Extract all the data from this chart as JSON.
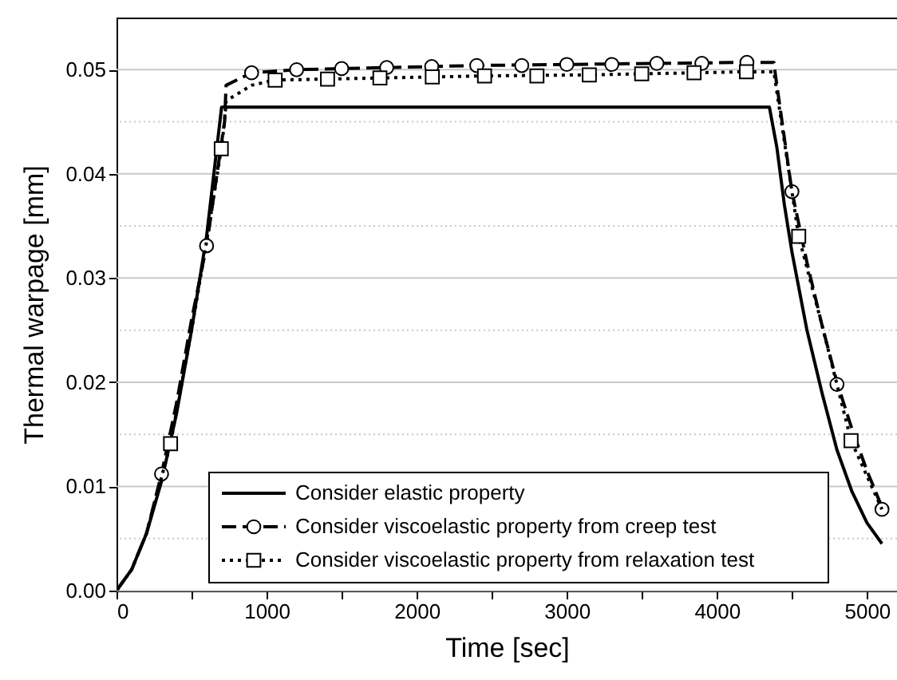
{
  "chart_data": {
    "type": "line",
    "xlabel": "Time  [sec]",
    "ylabel": "Thermal warpage  [mm]",
    "xlim": [
      0,
      5200
    ],
    "ylim": [
      0,
      0.055
    ],
    "xticks": [
      0,
      {
        "value": 500,
        "label": null
      },
      1000,
      {
        "value": 1500,
        "label": null
      },
      2000,
      {
        "value": 2500,
        "label": null
      },
      3000,
      {
        "value": 3500,
        "label": null
      },
      4000,
      {
        "value": 4500,
        "label": null
      },
      5000
    ],
    "yticks": [
      {
        "value": 0,
        "label": "0.00"
      },
      {
        "value": 0.005,
        "label": null
      },
      {
        "value": 0.01,
        "label": "0.01"
      },
      {
        "value": 0.015,
        "label": null
      },
      {
        "value": 0.02,
        "label": "0.02"
      },
      {
        "value": 0.025,
        "label": null
      },
      {
        "value": 0.03,
        "label": "0.03"
      },
      {
        "value": 0.035,
        "label": null
      },
      {
        "value": 0.04,
        "label": "0.04"
      },
      {
        "value": 0.045,
        "label": null
      },
      {
        "value": 0.05,
        "label": "0.05"
      }
    ],
    "grid": "y",
    "legend": "bottom",
    "series": [
      {
        "name": "Consider elastic property",
        "color": "#000000",
        "line_style": "solid",
        "x": [
          0,
          100,
          200,
          300,
          400,
          500,
          600,
          700,
          4350,
          4400,
          4450,
          4500,
          4600,
          4700,
          4800,
          4900,
          5000,
          5100
        ],
        "values": [
          0,
          0.002,
          0.0055,
          0.0105,
          0.017,
          0.025,
          0.034,
          0.0464,
          0.0464,
          0.0425,
          0.037,
          0.0325,
          0.025,
          0.019,
          0.0135,
          0.0095,
          0.0065,
          0.0045
        ]
      },
      {
        "name": "Consider viscoelastic property from creep test",
        "color": "#000000",
        "line_style": "dashed",
        "x": [
          0,
          100,
          200,
          300,
          400,
          500,
          600,
          720,
          730,
          900,
          1200,
          1800,
          2400,
          3000,
          3600,
          4200,
          4380,
          4390,
          4500,
          4600,
          4700,
          4800,
          4900,
          5000,
          5100
        ],
        "values": [
          0,
          0.002,
          0.0055,
          0.0112,
          0.018,
          0.026,
          0.0331,
          0.045,
          0.0485,
          0.0497,
          0.05,
          0.0502,
          0.0504,
          0.0505,
          0.0506,
          0.0507,
          0.0507,
          0.0495,
          0.0383,
          0.0315,
          0.0255,
          0.02,
          0.0155,
          0.0115,
          0.008
        ]
      },
      {
        "type": "scatter",
        "color": "#000000",
        "marker": "circle",
        "x": [
          300,
          600,
          900,
          1200,
          1500,
          1800,
          2100,
          2400,
          2700,
          3000,
          3300,
          3600,
          3900,
          4200,
          4500,
          4800,
          5100
        ],
        "values": [
          0.0112,
          0.0331,
          0.0497,
          0.05,
          0.0501,
          0.0502,
          0.0503,
          0.0504,
          0.0504,
          0.0505,
          0.0505,
          0.0506,
          0.0506,
          0.0507,
          0.0383,
          0.0198,
          0.0078
        ]
      },
      {
        "name": "Consider viscoelastic property from relaxation test",
        "color": "#000000",
        "line_style": "dotted",
        "x": [
          0,
          100,
          200,
          360,
          500,
          600,
          698,
          720,
          730,
          900,
          1050,
          1750,
          2450,
          3150,
          3850,
          4200,
          4380,
          4390,
          4545,
          4700,
          4894,
          5000,
          5100
        ],
        "values": [
          0,
          0.002,
          0.0055,
          0.0141,
          0.025,
          0.0335,
          0.0424,
          0.045,
          0.047,
          0.0485,
          0.049,
          0.0492,
          0.0494,
          0.0495,
          0.0497,
          0.0498,
          0.0498,
          0.0488,
          0.034,
          0.0255,
          0.0144,
          0.011,
          0.0078
        ]
      },
      {
        "type": "scatter",
        "color": "#000000",
        "marker": "square",
        "x": [
          360,
          698,
          1057,
          1406,
          1755,
          2104,
          2452,
          2801,
          3150,
          3499,
          3848,
          4197,
          4545,
          4894
        ],
        "values": [
          0.0141,
          0.0424,
          0.049,
          0.0491,
          0.0492,
          0.0493,
          0.0494,
          0.0494,
          0.0495,
          0.0496,
          0.0497,
          0.0498,
          0.034,
          0.0144
        ]
      }
    ]
  }
}
